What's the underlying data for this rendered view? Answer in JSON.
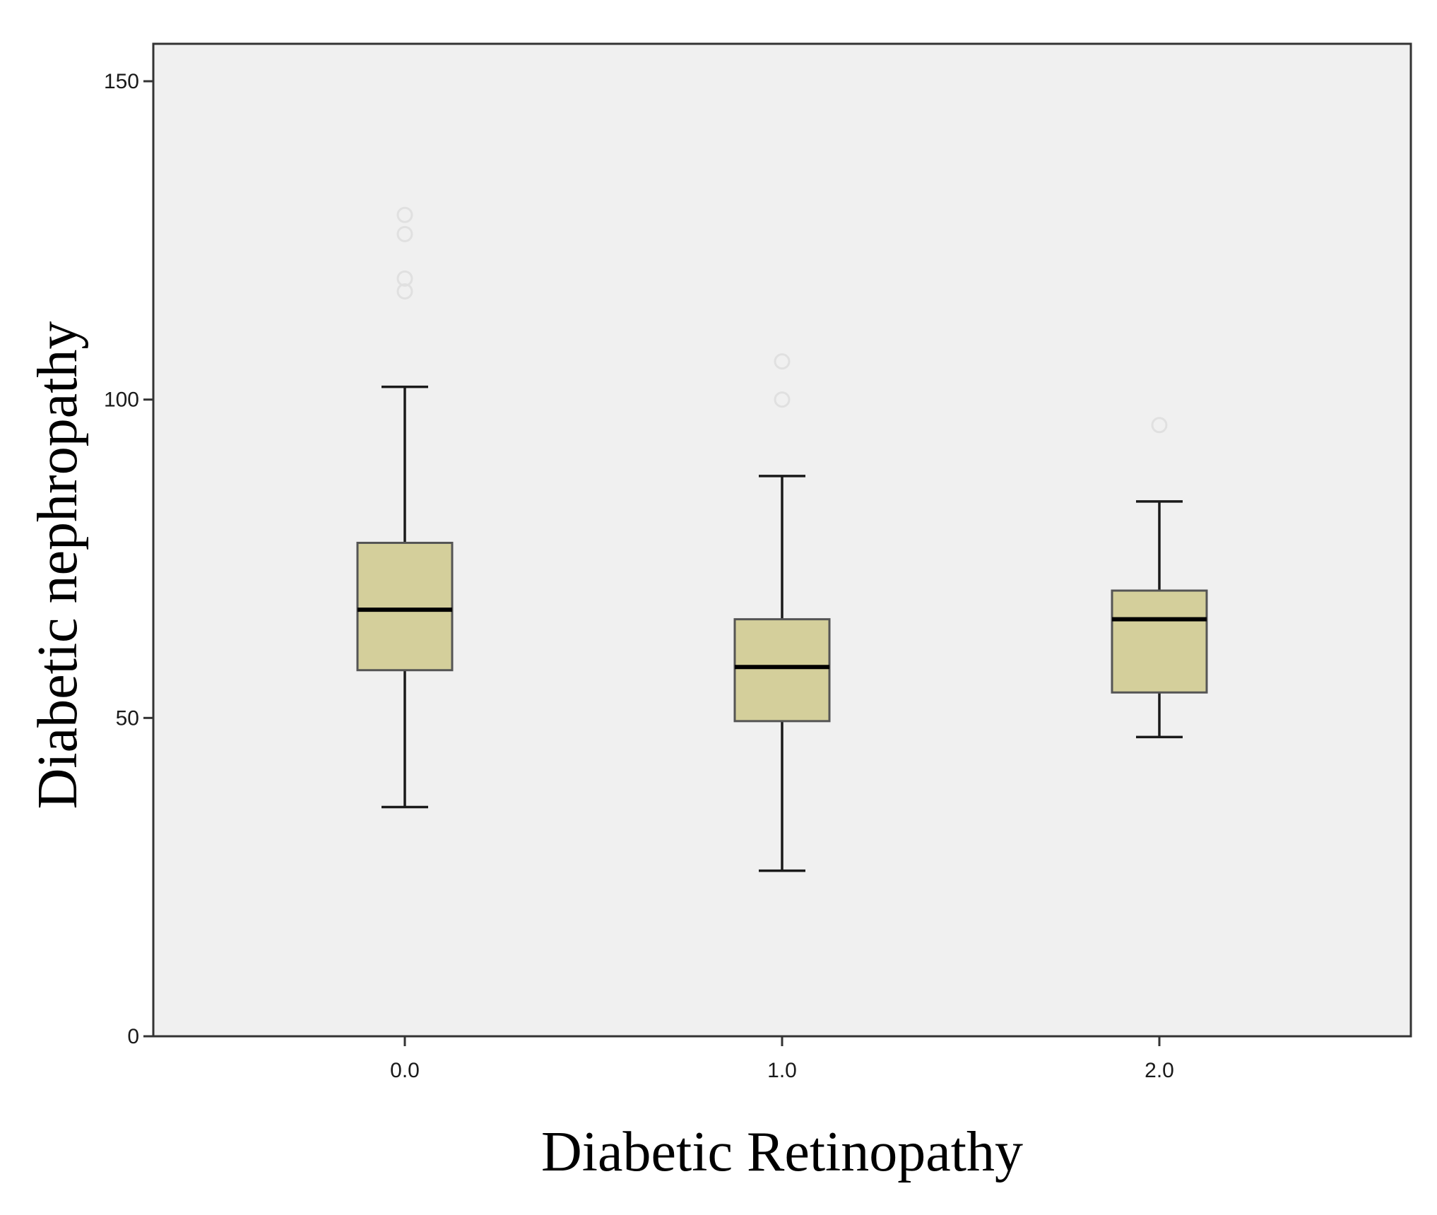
{
  "chart_data": {
    "type": "box",
    "title": "",
    "xlabel": "Diabetic Retinopathy",
    "ylabel": "Diabetic nephropathy",
    "ylim": [
      0,
      150
    ],
    "yticks": [
      0,
      50,
      100,
      150
    ],
    "ytick_labels": [
      "0",
      "50",
      "100",
      "150"
    ],
    "grid": false,
    "colors": {
      "box_fill": "#d4cf9b",
      "plot_background": "#f0f0f0",
      "box_stroke": "#1a1a1a",
      "outlier_stroke": "#e0e0e0"
    },
    "categories": [
      "0.0",
      "1.0",
      "2.0"
    ],
    "boxes": [
      {
        "category": "0.0",
        "whisker_low": 36,
        "q1": 57.5,
        "median": 67,
        "q3": 77.5,
        "whisker_high": 102,
        "outliers": [
          117,
          119,
          126,
          129
        ]
      },
      {
        "category": "1.0",
        "whisker_low": 26,
        "q1": 49.5,
        "median": 58,
        "q3": 65.5,
        "whisker_high": 88,
        "outliers": [
          100,
          106
        ]
      },
      {
        "category": "2.0",
        "whisker_low": 47,
        "q1": 54,
        "median": 65.5,
        "q3": 70,
        "whisker_high": 84,
        "outliers": [
          96
        ]
      }
    ]
  }
}
